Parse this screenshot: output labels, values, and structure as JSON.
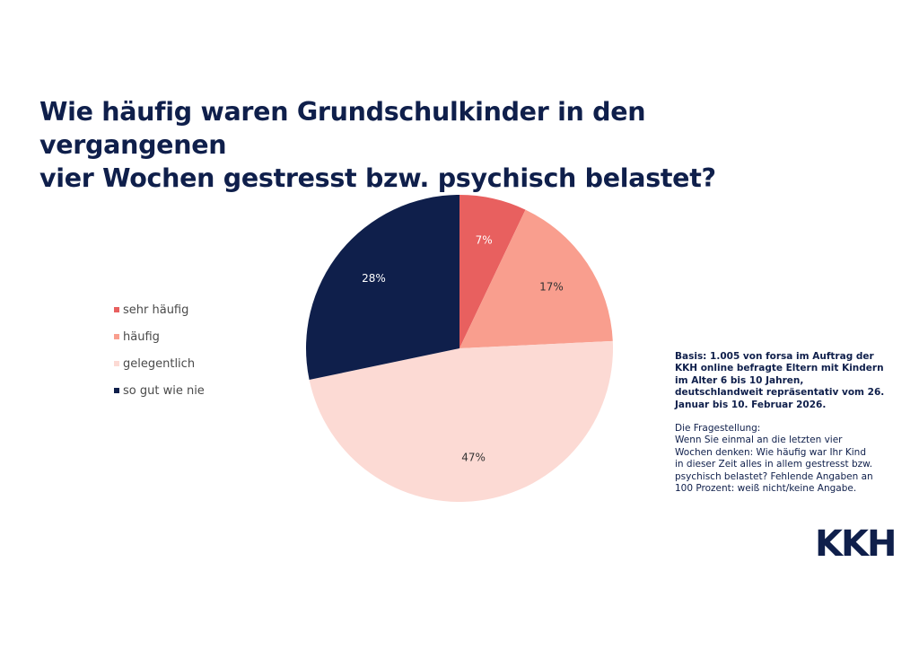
{
  "title_lines": [
    "Wie häufig waren Grundschulkinder in den vergangenen",
    "vier Wochen gestresst bzw. psychisch belastet?"
  ],
  "chart_data": {
    "type": "pie",
    "title": "Wie häufig waren Grundschulkinder in den vergangenen vier Wochen gestresst bzw. psychisch belastet?",
    "categories": [
      "sehr häufig",
      "häufig",
      "gelegentlich",
      "so gut wie nie"
    ],
    "values": [
      7,
      17,
      47,
      28
    ],
    "labels": [
      "7%",
      "17%",
      "47%",
      "28%"
    ],
    "colors": [
      "#e8605f",
      "#f99e8e",
      "#fcdad4",
      "#0f1f4b"
    ],
    "label_colors": [
      "#ffffff",
      "#333333",
      "#333333",
      "#ffffff"
    ],
    "legend_position": "left",
    "start_angle": "12 o'clock, clockwise"
  },
  "note": {
    "basis_lines": [
      "Basis: 1.005 von forsa im Auftrag der",
      "KKH online befragte Eltern mit Kindern",
      "im Alter 6 bis 10 Jahren,",
      "deutschlandweit repräsentativ vom 26.",
      "Januar bis 10. Februar 2026."
    ],
    "question_lines": [
      "Die Fragestellung:",
      "Wenn Sie einmal an die letzten vier",
      "Wochen denken: Wie häufig war Ihr Kind",
      "in dieser Zeit alles in allem gestresst bzw.",
      "psychisch belastet? Fehlende Angaben an",
      "100 Prozent: weiß nicht/keine Angabe."
    ]
  },
  "logo": "KKH"
}
